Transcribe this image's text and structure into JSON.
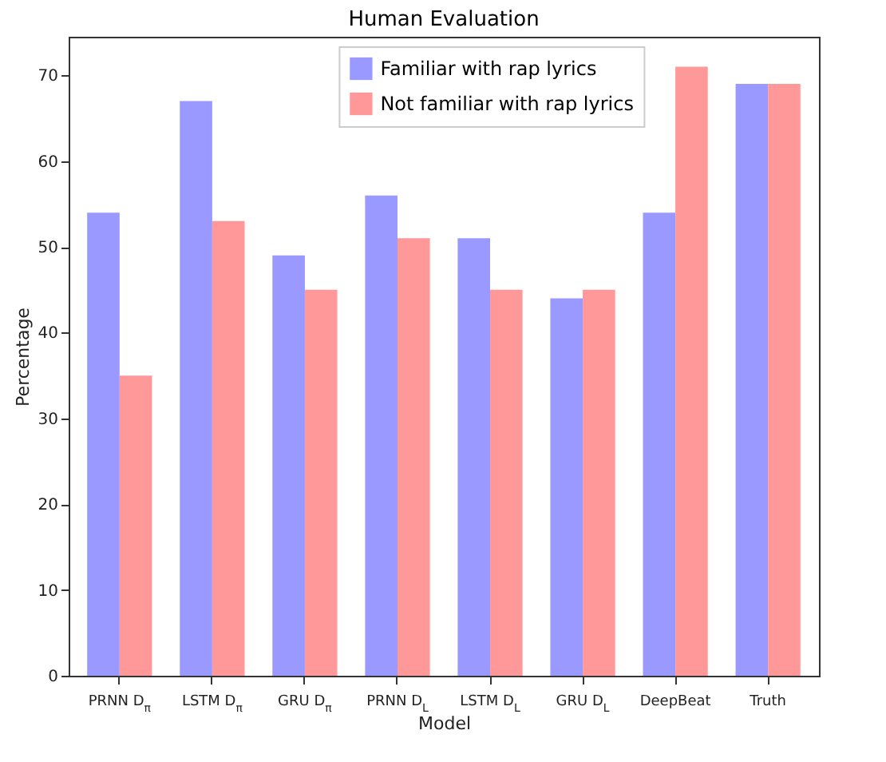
{
  "chart_data": {
    "type": "bar",
    "title": "Human Evaluation",
    "xlabel": "Model",
    "ylabel": "Percentage",
    "categories": [
      "PRNN D$_{π}$",
      "LSTM D$_{π}$",
      "GRU D$_{π}$",
      "PRNN D$_{L}$",
      "LSTM D$_{L}$",
      "GRU D$_{L}$",
      "DeepBeat",
      "Truth"
    ],
    "series": [
      {
        "name": "Familiar with rap lyrics",
        "color": "#9999ff",
        "values": [
          54,
          67,
          49,
          56,
          51,
          44,
          54,
          69
        ]
      },
      {
        "name": "Not familiar with rap lyrics",
        "color": "#ff9999",
        "values": [
          35,
          53,
          45,
          51,
          45,
          45,
          71,
          69
        ]
      }
    ],
    "ylim": [
      0,
      74.5
    ],
    "yticks": [
      0,
      10,
      20,
      30,
      40,
      50,
      60,
      70
    ],
    "legend": "top",
    "grid": false
  }
}
